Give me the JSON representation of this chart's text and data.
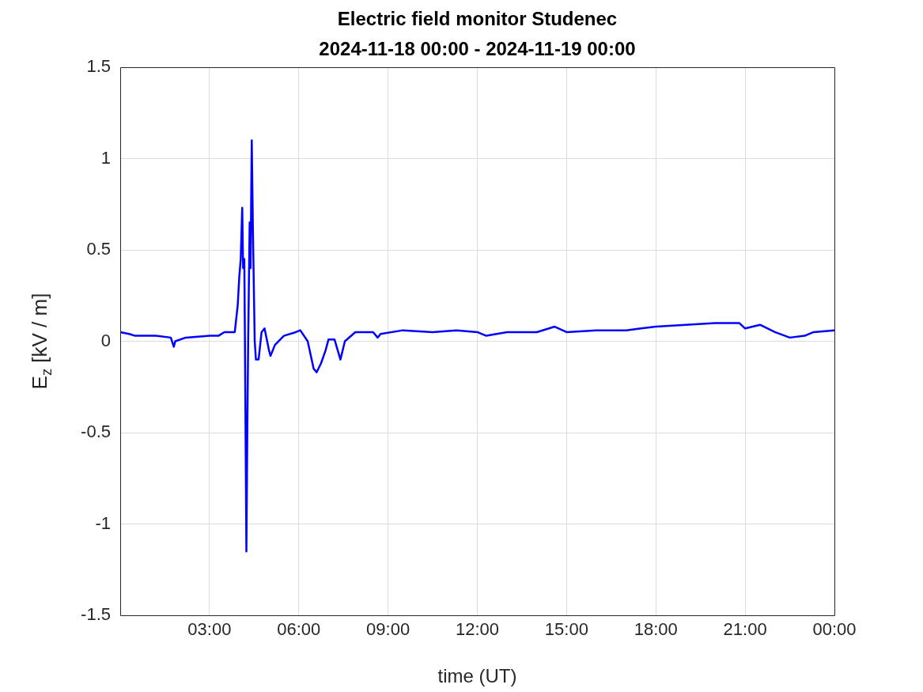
{
  "chart_data": {
    "type": "line",
    "title": "Electric field monitor Studenec",
    "subtitle": "2024-11-18 00:00 - 2024-11-19 00:00",
    "xlabel": "time (UT)",
    "ylabel": "E$_{z}$ [kV / m]",
    "xlim": [
      0,
      24
    ],
    "xticks": [
      {
        "value": 3,
        "label": "03:00"
      },
      {
        "value": 6,
        "label": "06:00"
      },
      {
        "value": 9,
        "label": "09:00"
      },
      {
        "value": 12,
        "label": "12:00"
      },
      {
        "value": 15,
        "label": "15:00"
      },
      {
        "value": 18,
        "label": "18:00"
      },
      {
        "value": 21,
        "label": "21:00"
      },
      {
        "value": 24,
        "label": "00:00"
      }
    ],
    "ylim": [
      -1.5,
      1.5
    ],
    "yticks": [
      -1.5,
      -1,
      -0.5,
      0,
      0.5,
      1,
      1.5
    ],
    "grid": true,
    "legend": false,
    "marker": "none",
    "line_style": "solid",
    "series": [
      {
        "color": "#0000ff",
        "x": [
          0,
          0.3,
          0.5,
          0.8,
          1.2,
          1.7,
          1.8,
          1.85,
          2.2,
          3.0,
          3.3,
          3.5,
          3.7,
          3.85,
          3.95,
          4.0,
          4.05,
          4.1,
          4.13,
          4.17,
          4.2,
          4.24,
          4.27,
          4.3,
          4.35,
          4.38,
          4.42,
          4.46,
          4.52,
          4.56,
          4.65,
          4.75,
          4.85,
          5.0,
          5.05,
          5.2,
          5.5,
          5.9,
          6.05,
          6.3,
          6.5,
          6.6,
          6.75,
          6.9,
          7.0,
          7.2,
          7.4,
          7.55,
          7.9,
          8.5,
          8.65,
          8.75,
          9.5,
          10.5,
          11.3,
          12.0,
          12.3,
          13,
          14,
          14.6,
          15,
          16,
          17,
          17.5,
          18,
          19,
          20,
          20.8,
          21,
          21.5,
          22,
          22.5,
          23,
          23.3,
          24
        ],
        "values": [
          0.05,
          0.04,
          0.03,
          0.03,
          0.03,
          0.02,
          -0.03,
          0.0,
          0.02,
          0.03,
          0.03,
          0.05,
          0.05,
          0.05,
          0.2,
          0.35,
          0.45,
          0.73,
          0.4,
          0.45,
          -0.2,
          -1.15,
          -0.5,
          0.0,
          0.65,
          0.4,
          1.1,
          0.6,
          0.0,
          -0.1,
          -0.1,
          0.05,
          0.07,
          -0.05,
          -0.08,
          -0.02,
          0.03,
          0.05,
          0.06,
          0.0,
          -0.15,
          -0.17,
          -0.12,
          -0.05,
          0.01,
          0.01,
          -0.1,
          0.0,
          0.05,
          0.05,
          0.02,
          0.04,
          0.06,
          0.05,
          0.06,
          0.05,
          0.03,
          0.05,
          0.05,
          0.08,
          0.05,
          0.06,
          0.06,
          0.07,
          0.08,
          0.09,
          0.1,
          0.1,
          0.07,
          0.09,
          0.05,
          0.02,
          0.03,
          0.05,
          0.06
        ]
      }
    ]
  }
}
